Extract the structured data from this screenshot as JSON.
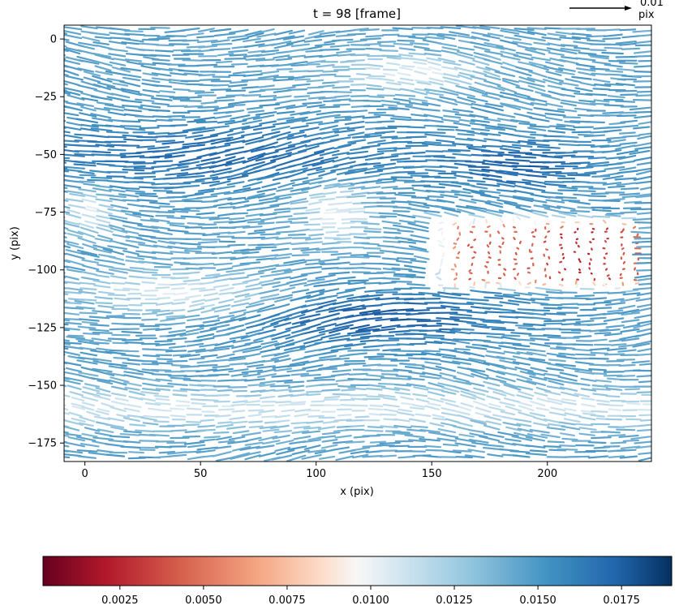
{
  "chart_data": {
    "type": "quiver",
    "title": "t = 98 [frame]",
    "xlabel": "x (pix)",
    "ylabel": "y (pix)",
    "xlim": [
      -9,
      245
    ],
    "ylim": [
      -183,
      6
    ],
    "x_ticks": [
      0,
      50,
      100,
      150,
      200
    ],
    "x_tick_labels": [
      "0",
      "50",
      "100",
      "150",
      "200"
    ],
    "y_ticks": [
      0,
      -25,
      -50,
      -75,
      -100,
      -125,
      -150,
      -175
    ],
    "y_tick_labels": [
      "0",
      "−25",
      "−50",
      "−75",
      "−100",
      "−125",
      "−150",
      "−175"
    ],
    "grid": false,
    "colormap": "RdBu",
    "colorbar": {
      "orientation": "horizontal",
      "placement": "bottom",
      "range": [
        0.0002,
        0.019
      ],
      "ticks": [
        0.0025,
        0.005,
        0.0075,
        0.01,
        0.0125,
        0.015,
        0.0175
      ],
      "tick_labels": [
        "0.0025",
        "0.0050",
        "0.0075",
        "0.0100",
        "0.0125",
        "0.0150",
        "0.0175"
      ]
    },
    "quiver_key": {
      "value": "0.01",
      "unit": "pix",
      "placement": "top-right"
    },
    "field_regions": [
      {
        "region": "background flow",
        "direction": "leftward",
        "magnitude": 0.0145
      },
      {
        "region": "strong band near y=-50",
        "direction": "leftward",
        "magnitude": 0.0175
      },
      {
        "region": "strong band near y=-120",
        "direction": "leftward",
        "magnitude": 0.018
      },
      {
        "region": "slow tongue x 150-240, y -80 to -110",
        "direction": "mixed",
        "magnitude": 0.004
      },
      {
        "region": "slow patch x 95-125, y -60 to -90",
        "direction": "rightward-curling",
        "magnitude": 0.0075
      },
      {
        "region": "slow patch x 0-15, y -65 to -85",
        "direction": "leftward",
        "magnitude": 0.0085
      }
    ]
  }
}
